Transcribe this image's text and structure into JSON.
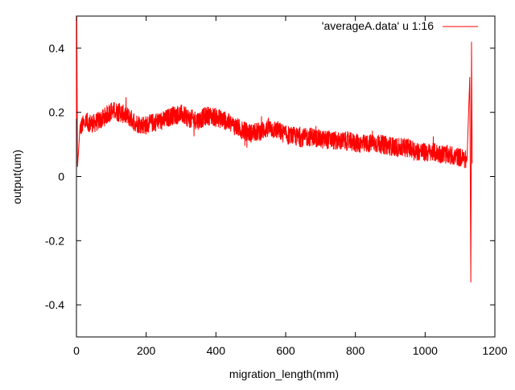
{
  "chart_data": {
    "type": "line",
    "title": "",
    "xlabel": "migration_length(mm)",
    "ylabel": "output(um)",
    "xlim": [
      0,
      1200
    ],
    "ylim": [
      -0.5,
      0.5
    ],
    "x_ticks": [
      0,
      200,
      400,
      600,
      800,
      1000,
      1200
    ],
    "y_ticks": [
      -0.4,
      -0.2,
      0,
      0.2,
      0.4
    ],
    "x_tick_labels": [
      "0",
      "200",
      "400",
      "600",
      "800",
      "1000",
      "1200"
    ],
    "y_tick_labels": [
      "-0.4",
      "-0.2",
      "0",
      "0.2",
      "0.4"
    ],
    "grid": false,
    "legend_position": "top-right",
    "series": [
      {
        "name": "'averageA.data' u 1:16",
        "color": "#ff0000",
        "trend_x": [
          0,
          1,
          3,
          10,
          25,
          50,
          75,
          100,
          125,
          150,
          175,
          200,
          225,
          250,
          275,
          300,
          325,
          350,
          375,
          400,
          425,
          450,
          475,
          500,
          525,
          550,
          575,
          600,
          625,
          650,
          675,
          700,
          725,
          750,
          775,
          800,
          825,
          850,
          875,
          900,
          925,
          950,
          975,
          1000,
          1025,
          1050,
          1075,
          1100,
          1120,
          1128,
          1131,
          1133,
          1135
        ],
        "trend_y": [
          0.18,
          0.5,
          0.03,
          0.15,
          0.17,
          0.165,
          0.18,
          0.205,
          0.2,
          0.185,
          0.165,
          0.16,
          0.17,
          0.175,
          0.19,
          0.195,
          0.18,
          0.175,
          0.19,
          0.185,
          0.175,
          0.16,
          0.145,
          0.135,
          0.14,
          0.15,
          0.145,
          0.13,
          0.125,
          0.12,
          0.125,
          0.115,
          0.115,
          0.11,
          0.11,
          0.105,
          0.1,
          0.105,
          0.1,
          0.095,
          0.09,
          0.09,
          0.08,
          0.075,
          0.075,
          0.07,
          0.065,
          0.06,
          0.05,
          0.31,
          -0.33,
          0.42,
          0.04
        ],
        "noise_amplitude": 0.03
      }
    ]
  }
}
